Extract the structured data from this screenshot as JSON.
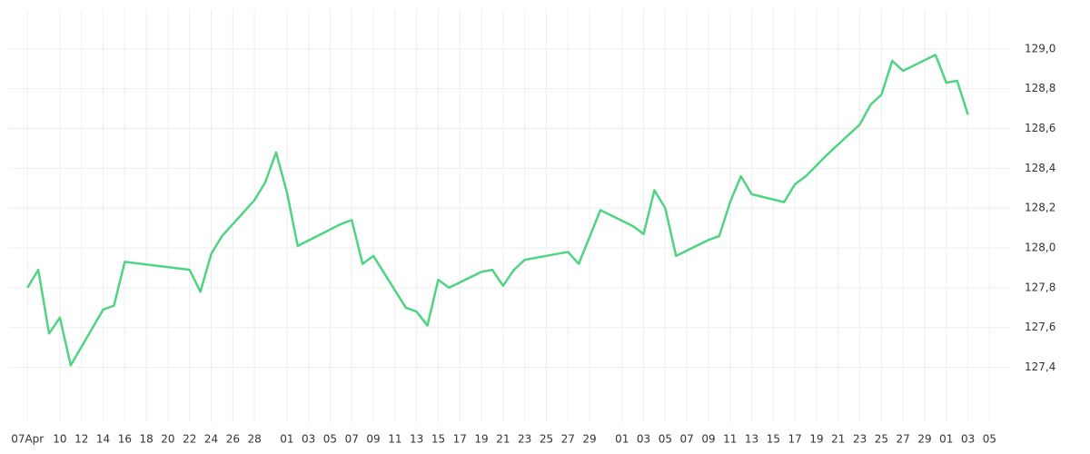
{
  "chart_data": {
    "type": "line",
    "x": [
      0,
      1,
      2,
      3,
      4,
      7,
      8,
      9,
      15,
      16,
      17,
      18,
      21,
      22,
      23,
      24,
      25,
      29,
      30,
      31,
      32,
      35,
      36,
      37,
      38,
      39,
      42,
      43,
      44,
      45,
      46,
      50,
      51,
      53,
      56,
      57,
      58,
      59,
      60,
      63,
      64,
      65,
      66,
      67,
      70,
      71,
      72,
      74,
      77,
      78,
      79,
      80,
      81,
      84,
      85,
      86,
      87
    ],
    "series": [
      {
        "color": "#4fd483",
        "values": [
          127.8,
          127.89,
          127.57,
          127.65,
          127.41,
          127.69,
          127.71,
          127.93,
          127.89,
          127.78,
          127.97,
          128.06,
          128.24,
          128.33,
          128.48,
          128.28,
          128.01,
          128.12,
          128.14,
          127.92,
          127.96,
          127.7,
          127.68,
          127.61,
          127.84,
          127.8,
          127.88,
          127.89,
          127.81,
          127.89,
          127.94,
          127.98,
          127.92,
          128.19,
          128.11,
          128.07,
          128.29,
          128.2,
          127.96,
          128.04,
          128.06,
          128.23,
          128.36,
          128.27,
          128.23,
          128.32,
          128.36,
          128.47,
          128.62,
          128.72,
          128.77,
          128.94,
          128.89,
          128.97,
          128.83,
          128.84,
          128.67
        ]
      }
    ],
    "xlim": [
      -1.7,
      90.9
    ],
    "xticks": [
      {
        "value": 0,
        "label": "07Apr"
      },
      {
        "value": 3,
        "label": "10"
      },
      {
        "value": 5,
        "label": "12"
      },
      {
        "value": 7,
        "label": "14"
      },
      {
        "value": 9,
        "label": "16"
      },
      {
        "value": 11,
        "label": "18"
      },
      {
        "value": 13,
        "label": "20"
      },
      {
        "value": 15,
        "label": "22"
      },
      {
        "value": 17,
        "label": "24"
      },
      {
        "value": 19,
        "label": "26"
      },
      {
        "value": 21,
        "label": "28"
      },
      {
        "value": 24,
        "label": "01"
      },
      {
        "value": 26,
        "label": "03"
      },
      {
        "value": 28,
        "label": "05"
      },
      {
        "value": 30,
        "label": "07"
      },
      {
        "value": 32,
        "label": "09"
      },
      {
        "value": 34,
        "label": "11"
      },
      {
        "value": 36,
        "label": "13"
      },
      {
        "value": 38,
        "label": "15"
      },
      {
        "value": 40,
        "label": "17"
      },
      {
        "value": 42,
        "label": "19"
      },
      {
        "value": 44,
        "label": "21"
      },
      {
        "value": 46,
        "label": "23"
      },
      {
        "value": 48,
        "label": "25"
      },
      {
        "value": 50,
        "label": "27"
      },
      {
        "value": 52,
        "label": "29"
      },
      {
        "value": 55,
        "label": "01"
      },
      {
        "value": 57,
        "label": "03"
      },
      {
        "value": 59,
        "label": "05"
      },
      {
        "value": 61,
        "label": "07"
      },
      {
        "value": 63,
        "label": "09"
      },
      {
        "value": 65,
        "label": "11"
      },
      {
        "value": 67,
        "label": "13"
      },
      {
        "value": 69,
        "label": "15"
      },
      {
        "value": 71,
        "label": "17"
      },
      {
        "value": 73,
        "label": "19"
      },
      {
        "value": 75,
        "label": "21"
      },
      {
        "value": 77,
        "label": "23"
      },
      {
        "value": 79,
        "label": "25"
      },
      {
        "value": 81,
        "label": "27"
      },
      {
        "value": 83,
        "label": "29"
      },
      {
        "value": 85,
        "label": "01"
      },
      {
        "value": 87,
        "label": "03"
      },
      {
        "value": 89,
        "label": "05"
      }
    ],
    "ylim": [
      127.17,
      129.2
    ],
    "yticks": [
      {
        "value": 127.4,
        "label": "127,4"
      },
      {
        "value": 127.6,
        "label": "127,6"
      },
      {
        "value": 127.8,
        "label": "127,8"
      },
      {
        "value": 128.0,
        "label": "128,0"
      },
      {
        "value": 128.2,
        "label": "128,2"
      },
      {
        "value": 128.4,
        "label": "128,4"
      },
      {
        "value": 128.6,
        "label": "128,6"
      },
      {
        "value": 128.8,
        "label": "128,8"
      },
      {
        "value": 129.0,
        "label": "129,0"
      }
    ],
    "grid": true
  }
}
